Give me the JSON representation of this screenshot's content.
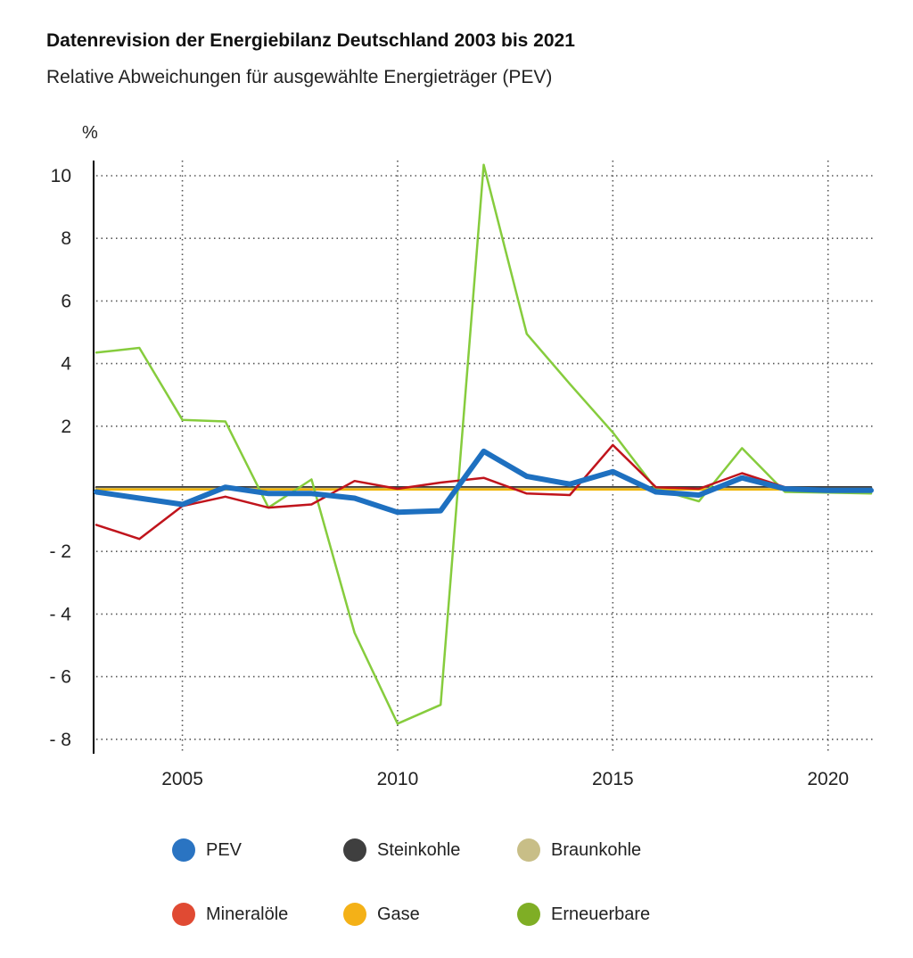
{
  "title": "Datenrevision der Energiebilanz Deutschland 2003 bis 2021",
  "subtitle": "Relative Abweichungen für ausgewählte Energieträger (PEV)",
  "unit_label": "%",
  "chart_data": {
    "type": "line",
    "title": "Datenrevision der Energiebilanz Deutschland 2003 bis 2021",
    "subtitle": "Relative Abweichungen für ausgewählte Energieträger (PEV)",
    "ylabel": "%",
    "xlim": [
      2003,
      2021
    ],
    "ylim": [
      -8.5,
      10.5
    ],
    "x_ticks": [
      2005,
      2010,
      2015,
      2020
    ],
    "y_ticks": [
      {
        "value": 10,
        "label": "10"
      },
      {
        "value": 8,
        "label": "8"
      },
      {
        "value": 6,
        "label": "6"
      },
      {
        "value": 4,
        "label": "4"
      },
      {
        "value": 2,
        "label": "2"
      },
      {
        "value": -2,
        "label": "- 2"
      },
      {
        "value": -4,
        "label": "- 4"
      },
      {
        "value": -6,
        "label": "- 6"
      },
      {
        "value": -8,
        "label": "- 8"
      }
    ],
    "grid": "dotted",
    "legend_position": "bottom",
    "x": [
      2003,
      2004,
      2005,
      2006,
      2007,
      2008,
      2009,
      2010,
      2011,
      2012,
      2013,
      2014,
      2015,
      2016,
      2017,
      2018,
      2019,
      2020,
      2021
    ],
    "series": [
      {
        "name": "Steinkohle",
        "color": "#3a3a3a",
        "width": 2.5,
        "values": [
          0.05,
          0.05,
          0.05,
          0.05,
          0.05,
          0.05,
          0.05,
          0.05,
          0.05,
          0.05,
          0.05,
          0.05,
          0.05,
          0.05,
          0.05,
          0.05,
          0.05,
          0.05,
          0.05
        ]
      },
      {
        "name": "Braunkohle",
        "color": "#c8be87",
        "width": 2.5,
        "values": [
          0,
          0,
          0,
          0,
          0,
          0,
          0,
          0,
          0,
          0,
          0,
          0,
          0,
          0,
          0,
          0,
          0,
          0,
          0
        ]
      },
      {
        "name": "Gase",
        "color": "#f0b400",
        "width": 2.5,
        "values": [
          -0.02,
          -0.02,
          -0.02,
          -0.02,
          -0.02,
          -0.02,
          -0.02,
          -0.02,
          -0.02,
          -0.02,
          -0.02,
          -0.02,
          -0.02,
          -0.02,
          -0.02,
          -0.02,
          -0.02,
          -0.02,
          -0.02
        ]
      },
      {
        "name": "Erneuerbare",
        "color": "#86cc3d",
        "width": 2.5,
        "values": [
          4.35,
          4.5,
          2.2,
          2.15,
          -0.6,
          0.3,
          -4.6,
          -7.5,
          -6.9,
          10.35,
          4.95,
          3.35,
          1.8,
          0.0,
          -0.4,
          1.3,
          -0.1,
          -0.12,
          -0.15
        ]
      },
      {
        "name": "Mineralöle",
        "color": "#c0141c",
        "width": 2.5,
        "values": [
          -1.15,
          -1.6,
          -0.55,
          -0.25,
          -0.6,
          -0.5,
          0.25,
          0.0,
          0.2,
          0.35,
          -0.15,
          -0.2,
          1.4,
          0.05,
          0.0,
          0.5,
          0.05,
          -0.05,
          -0.05
        ]
      },
      {
        "name": "PEV",
        "color": "#1e70c0",
        "width": 6,
        "values": [
          -0.1,
          -0.3,
          -0.5,
          0.05,
          -0.15,
          -0.15,
          -0.3,
          -0.75,
          -0.7,
          1.2,
          0.4,
          0.15,
          0.55,
          -0.1,
          -0.2,
          0.35,
          0.0,
          -0.05,
          -0.05
        ]
      }
    ]
  },
  "legend": [
    {
      "label": "PEV",
      "color": "#2a74c2"
    },
    {
      "label": "Steinkohle",
      "color": "#3f3f3f"
    },
    {
      "label": "Braunkohle",
      "color": "#c8be87"
    },
    {
      "label": "Mineralöle",
      "color": "#e04a33"
    },
    {
      "label": "Gase",
      "color": "#f4b117"
    },
    {
      "label": "Erneuerbare",
      "color": "#7fae25"
    }
  ]
}
